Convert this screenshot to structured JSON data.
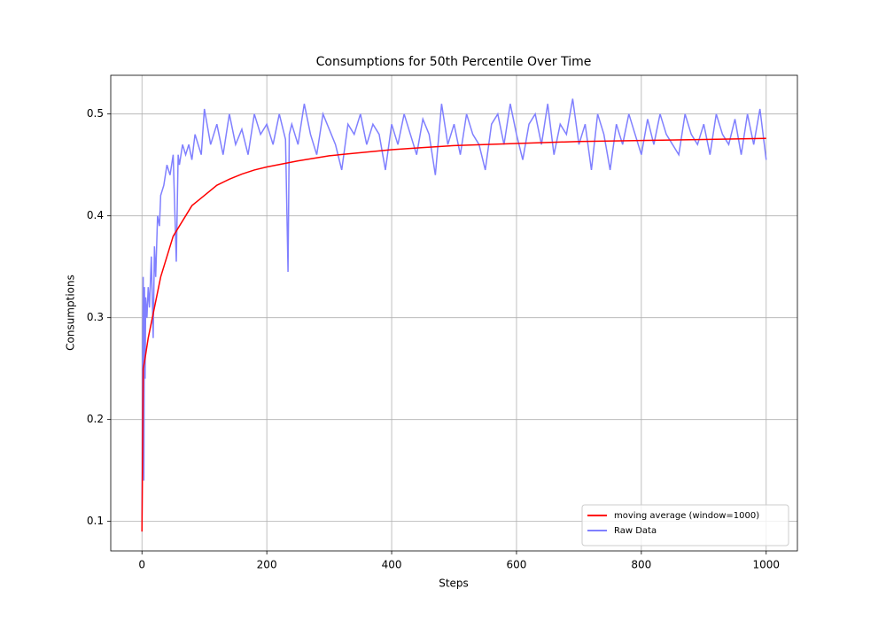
{
  "chart_data": {
    "type": "line",
    "title": "Consumptions for 50th Percentile Over Time",
    "x_label": "Steps",
    "y_label": "Consumptions",
    "xlim": [
      -50,
      1050
    ],
    "ylim": [
      0.071,
      0.538
    ],
    "xticks": [
      0,
      200,
      400,
      600,
      800,
      1000
    ],
    "yticks": [
      0.1,
      0.2,
      0.3,
      0.4,
      0.5
    ],
    "grid": true,
    "legend": "lower right",
    "series": [
      {
        "name": "moving average (window=1000)",
        "color": "#ff0000",
        "x": [
          0,
          2,
          5,
          10,
          20,
          30,
          40,
          50,
          60,
          70,
          80,
          90,
          100,
          120,
          140,
          160,
          180,
          200,
          250,
          300,
          350,
          400,
          450,
          500,
          600,
          700,
          800,
          900,
          1000
        ],
        "values": [
          0.09,
          0.25,
          0.26,
          0.28,
          0.31,
          0.34,
          0.36,
          0.38,
          0.39,
          0.4,
          0.41,
          0.415,
          0.42,
          0.43,
          0.436,
          0.441,
          0.445,
          0.448,
          0.454,
          0.459,
          0.462,
          0.465,
          0.467,
          0.469,
          0.471,
          0.473,
          0.474,
          0.475,
          0.476
        ]
      },
      {
        "name": "Raw Data",
        "color": "#8080ff",
        "x": [
          0,
          1,
          2,
          3,
          4,
          5,
          6,
          8,
          10,
          12,
          15,
          18,
          20,
          22,
          25,
          28,
          30,
          35,
          40,
          45,
          50,
          55,
          58,
          60,
          65,
          70,
          75,
          80,
          85,
          90,
          95,
          100,
          110,
          120,
          130,
          140,
          150,
          160,
          170,
          180,
          190,
          200,
          210,
          220,
          230,
          234,
          236,
          240,
          250,
          260,
          270,
          280,
          290,
          300,
          310,
          320,
          330,
          340,
          350,
          360,
          370,
          380,
          390,
          400,
          410,
          420,
          430,
          440,
          450,
          460,
          470,
          480,
          490,
          500,
          510,
          520,
          530,
          540,
          550,
          560,
          570,
          580,
          590,
          600,
          610,
          620,
          630,
          640,
          650,
          660,
          670,
          680,
          690,
          700,
          710,
          720,
          730,
          740,
          750,
          760,
          770,
          780,
          790,
          800,
          810,
          820,
          830,
          840,
          850,
          860,
          870,
          880,
          890,
          900,
          910,
          920,
          930,
          940,
          950,
          960,
          970,
          980,
          990,
          1000
        ],
        "values": [
          0.09,
          0.25,
          0.34,
          0.14,
          0.33,
          0.24,
          0.32,
          0.3,
          0.33,
          0.31,
          0.36,
          0.28,
          0.37,
          0.34,
          0.4,
          0.39,
          0.42,
          0.43,
          0.45,
          0.44,
          0.46,
          0.355,
          0.46,
          0.45,
          0.47,
          0.46,
          0.47,
          0.455,
          0.48,
          0.47,
          0.46,
          0.505,
          0.47,
          0.49,
          0.46,
          0.5,
          0.47,
          0.485,
          0.46,
          0.5,
          0.48,
          0.49,
          0.47,
          0.5,
          0.475,
          0.345,
          0.48,
          0.49,
          0.47,
          0.51,
          0.48,
          0.46,
          0.5,
          0.485,
          0.47,
          0.445,
          0.49,
          0.48,
          0.5,
          0.47,
          0.49,
          0.48,
          0.445,
          0.49,
          0.47,
          0.5,
          0.48,
          0.46,
          0.495,
          0.48,
          0.44,
          0.51,
          0.47,
          0.49,
          0.46,
          0.5,
          0.48,
          0.47,
          0.445,
          0.49,
          0.5,
          0.47,
          0.51,
          0.48,
          0.455,
          0.49,
          0.5,
          0.47,
          0.51,
          0.46,
          0.49,
          0.48,
          0.515,
          0.47,
          0.49,
          0.445,
          0.5,
          0.48,
          0.445,
          0.49,
          0.47,
          0.5,
          0.48,
          0.46,
          0.495,
          0.47,
          0.5,
          0.48,
          0.47,
          0.46,
          0.5,
          0.48,
          0.47,
          0.49,
          0.46,
          0.5,
          0.48,
          0.47,
          0.495,
          0.46,
          0.5,
          0.47,
          0.505,
          0.455
        ]
      }
    ]
  }
}
